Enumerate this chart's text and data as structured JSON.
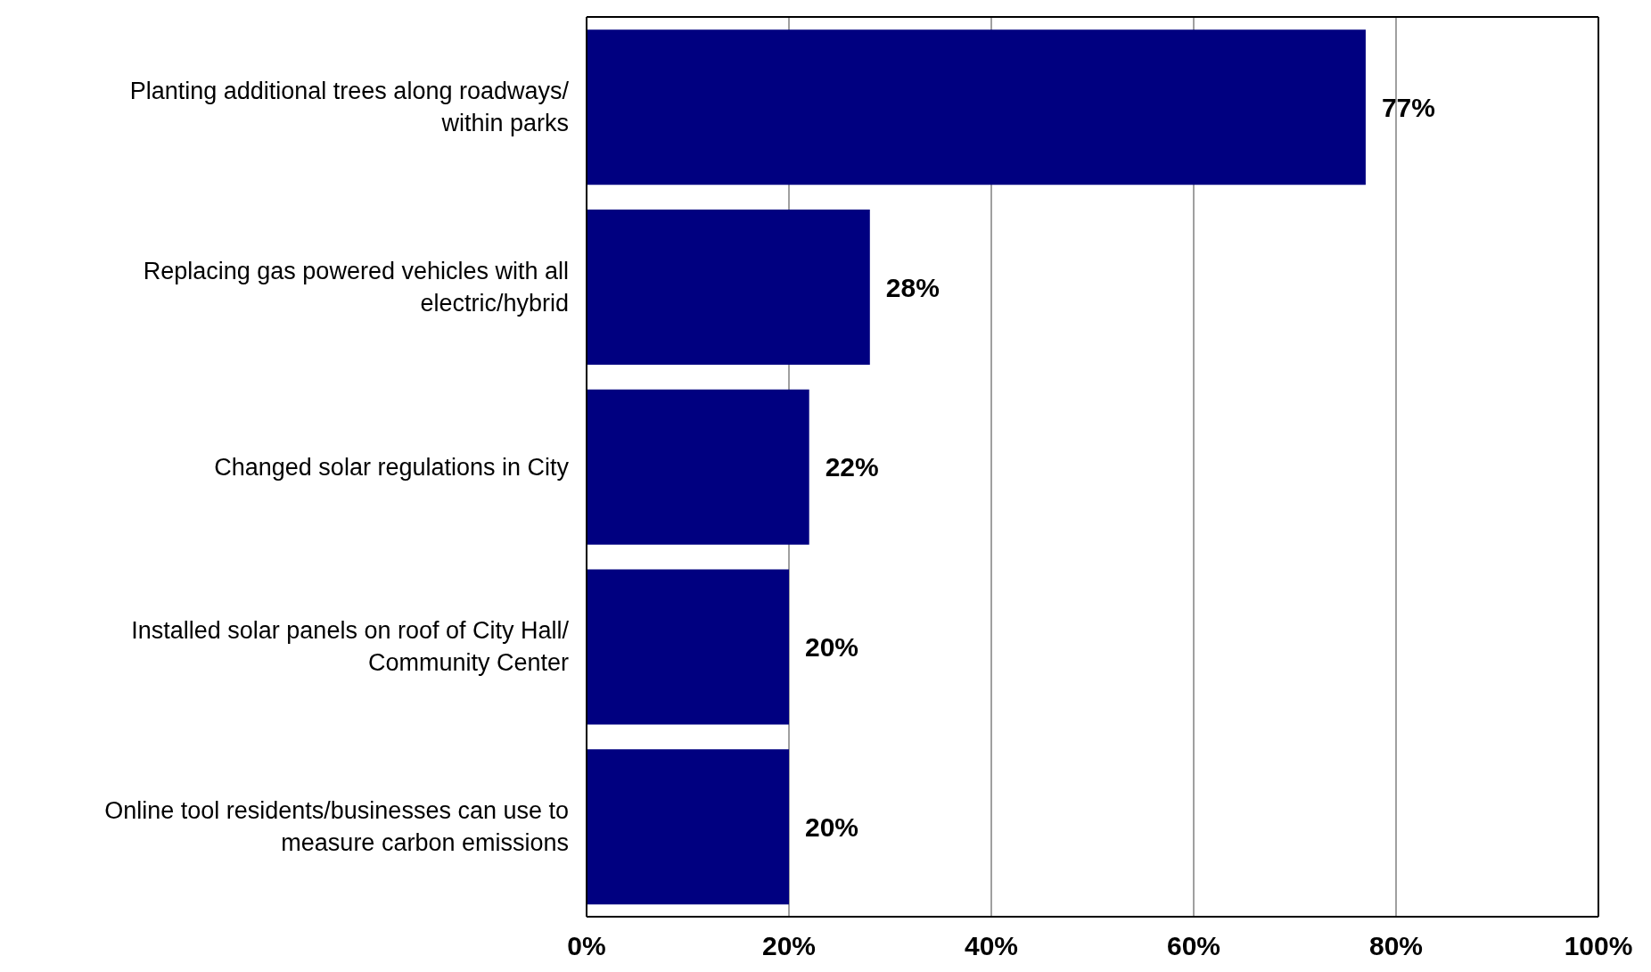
{
  "chart_data": {
    "type": "bar",
    "orientation": "horizontal",
    "categories": [
      "Planting additional trees along roadways/ within parks",
      "Replacing gas powered vehicles with all electric/hybrid",
      "Changed solar regulations in City",
      "Installed solar panels on roof of City Hall/ Community Center",
      "Online tool residents/businesses can use to measure carbon emissions"
    ],
    "values": [
      77,
      28,
      22,
      20,
      20
    ],
    "color": "#000080",
    "data_labels": true,
    "value_labels": [
      "77%",
      "28%",
      "22%",
      "20%",
      "20%"
    ],
    "xlim": [
      0,
      100
    ],
    "xticks": [
      {
        "value": 0,
        "label": "0%"
      },
      {
        "value": 20,
        "label": "20%"
      },
      {
        "value": 40,
        "label": "40%"
      },
      {
        "value": 60,
        "label": "60%"
      },
      {
        "value": 80,
        "label": "80%"
      },
      {
        "value": 100,
        "label": "100%"
      }
    ],
    "grid": "x"
  }
}
